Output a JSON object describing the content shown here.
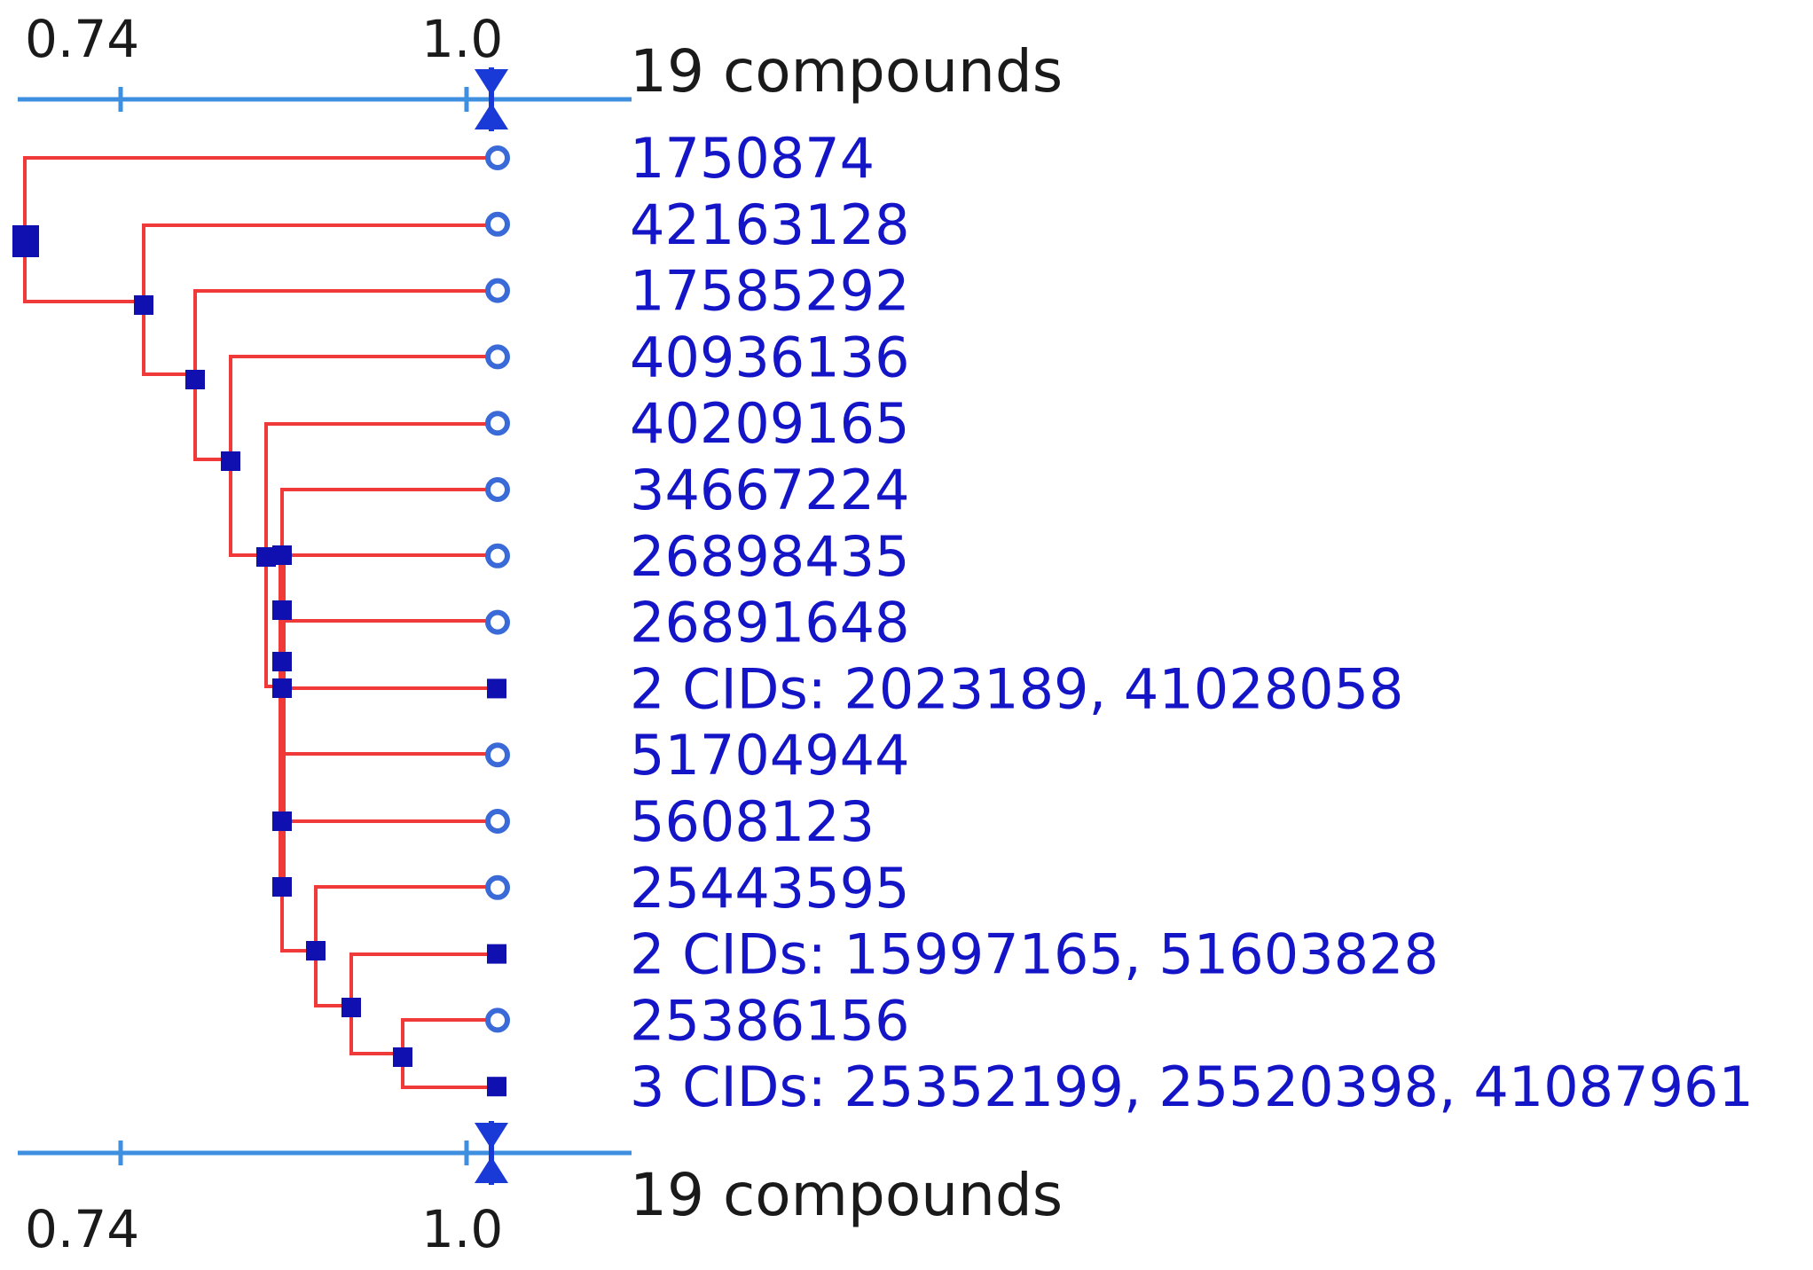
{
  "scale": {
    "min_label": "0.74",
    "max_label": "1.0",
    "min": 0.74,
    "max": 1.0,
    "count_label": "19 compounds"
  },
  "leaves": [
    {
      "label": "1750874",
      "kind": "single"
    },
    {
      "label": "42163128",
      "kind": "single"
    },
    {
      "label": "17585292",
      "kind": "single"
    },
    {
      "label": "40936136",
      "kind": "single"
    },
    {
      "label": "40209165",
      "kind": "single"
    },
    {
      "label": "34667224",
      "kind": "single"
    },
    {
      "label": "26898435",
      "kind": "single"
    },
    {
      "label": "26891648",
      "kind": "single"
    },
    {
      "label": "2 CIDs: 2023189, 41028058",
      "kind": "group"
    },
    {
      "label": "51704944",
      "kind": "single"
    },
    {
      "label": "5608123",
      "kind": "single"
    },
    {
      "label": "25443595",
      "kind": "single"
    },
    {
      "label": "2 CIDs: 15997165, 51603828",
      "kind": "group"
    },
    {
      "label": "25386156",
      "kind": "single"
    },
    {
      "label": "3 CIDs: 25352199, 25520398, 41087961",
      "kind": "group"
    }
  ],
  "colors": {
    "links": "#f03a3a",
    "nodes": "#1010b0",
    "axis": "#3f8fe0",
    "labels": "#1515c8"
  }
}
